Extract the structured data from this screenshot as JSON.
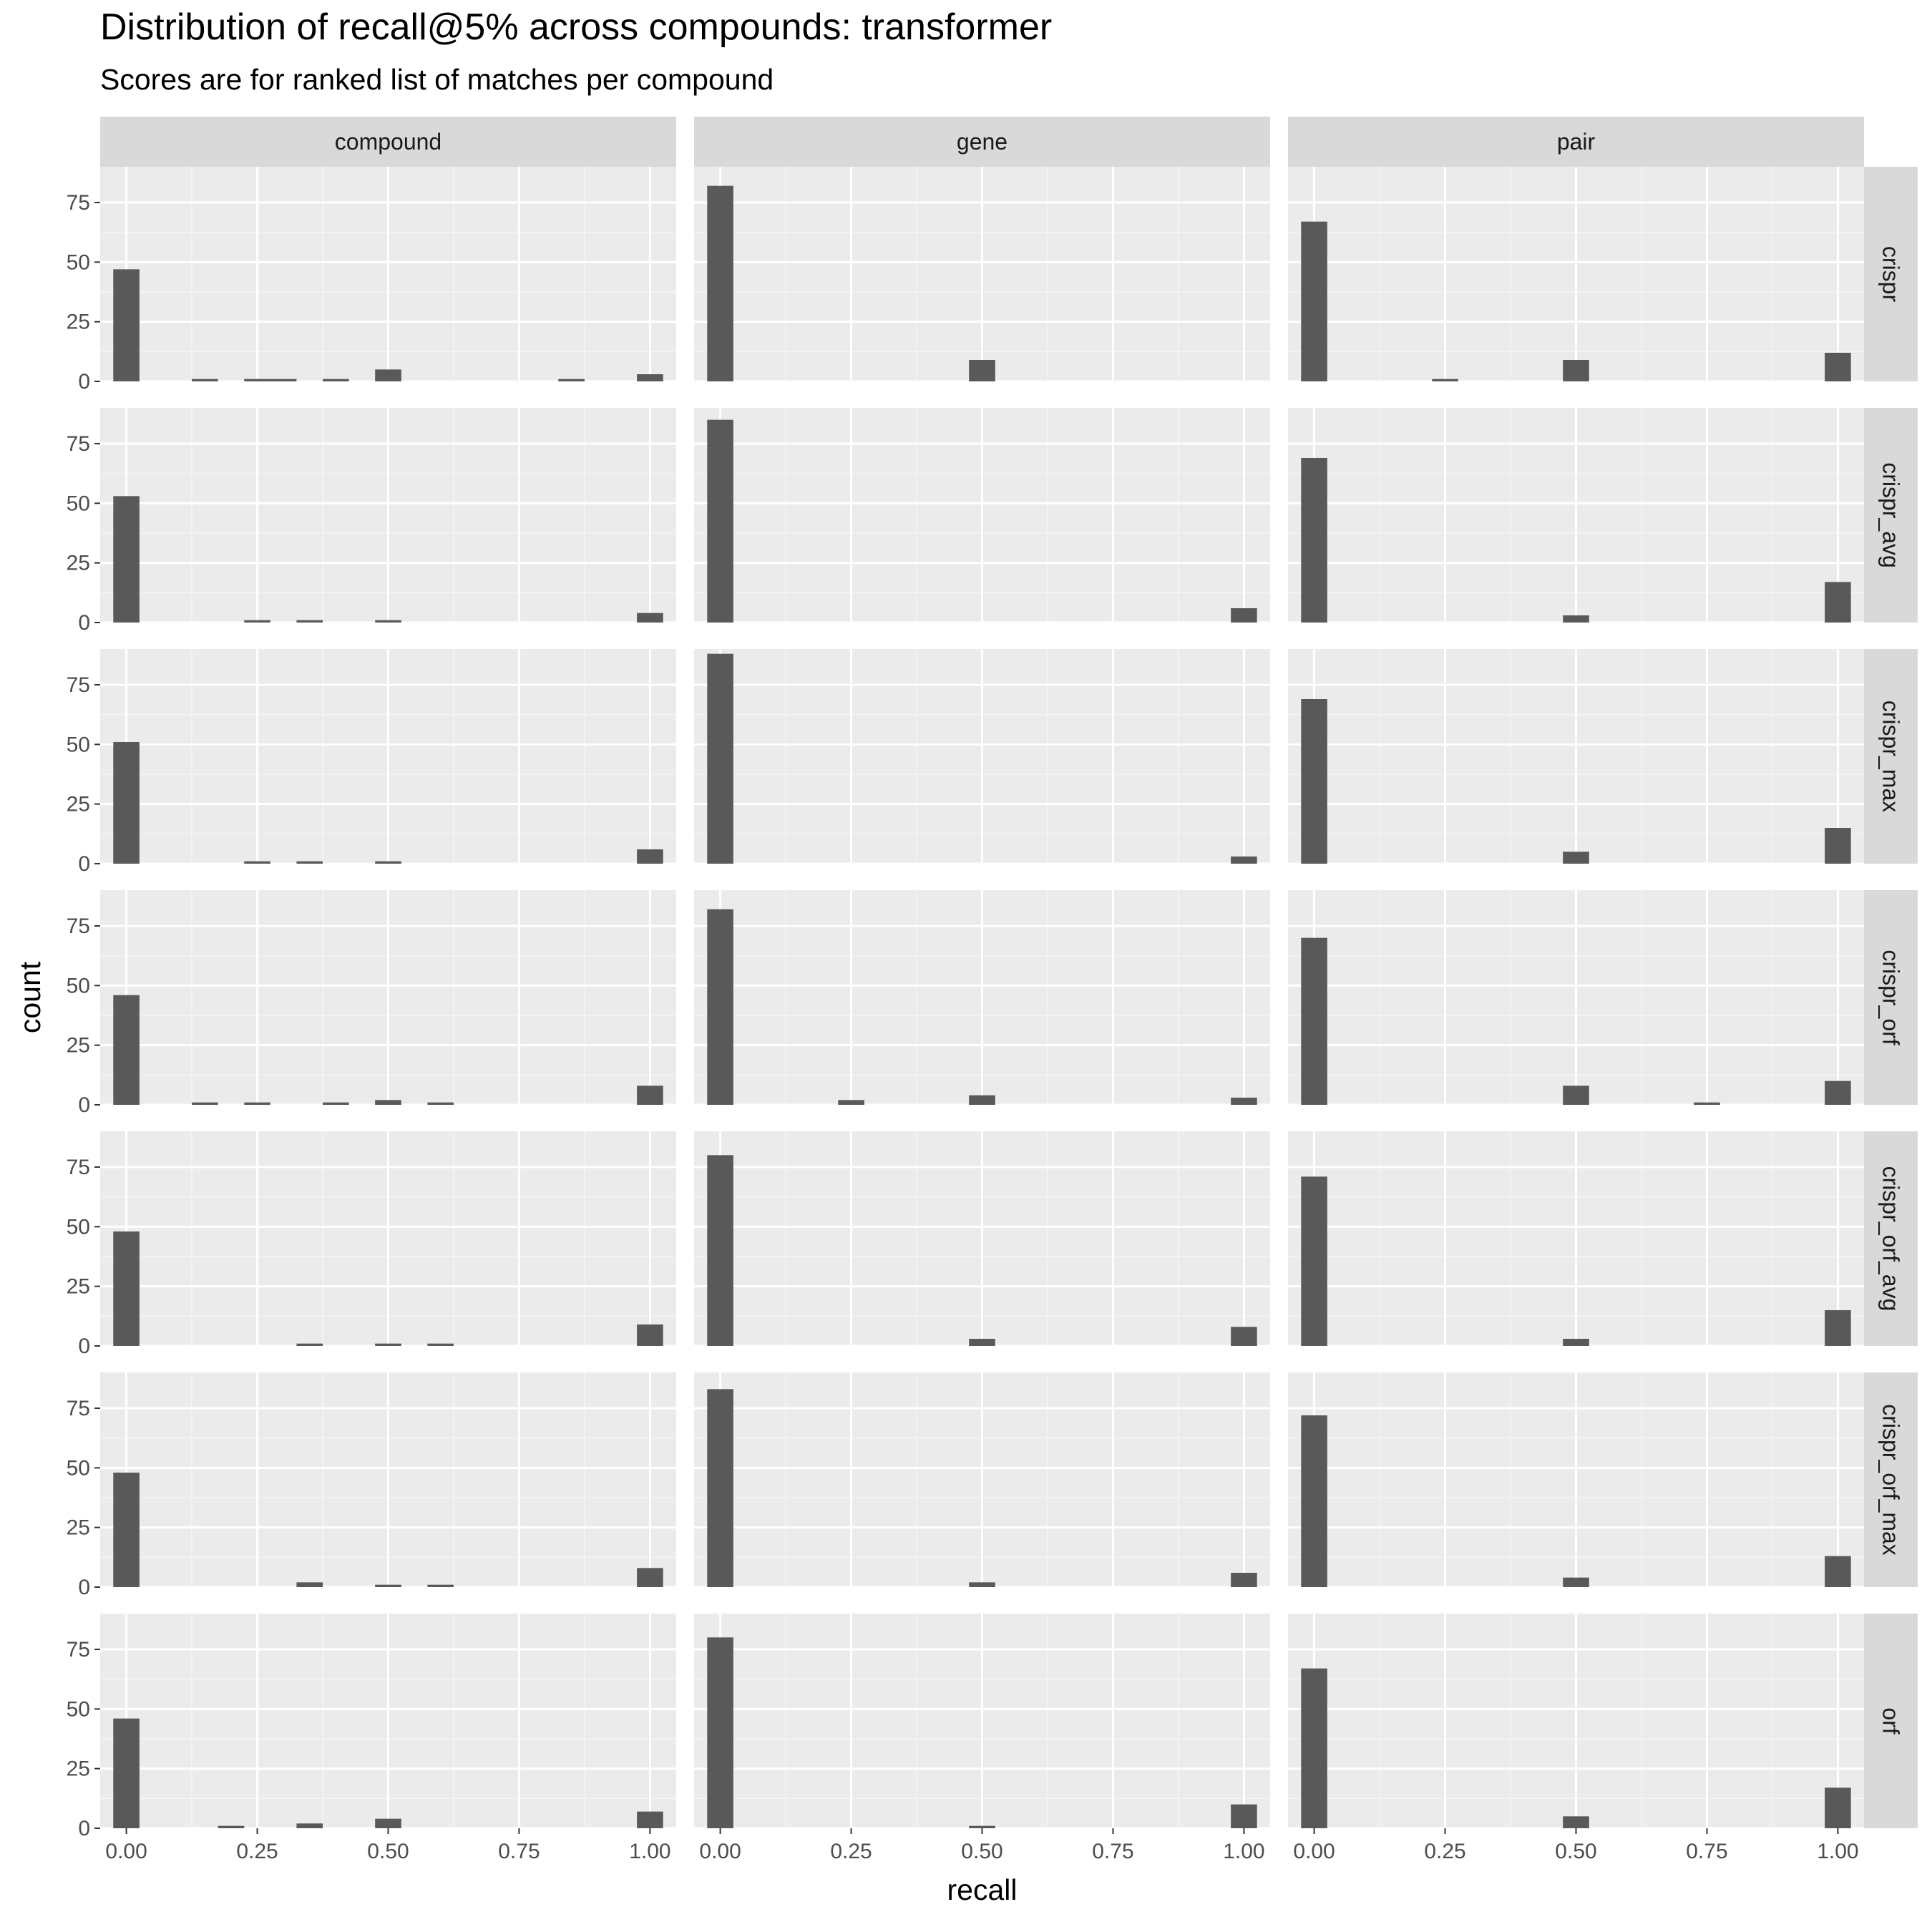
{
  "title": "Distribution of recall@5% across compounds: transformer",
  "subtitle": "Scores are for ranked list of matches per compound",
  "chart_data": {
    "type": "bar",
    "description_kind": "faceted histogram",
    "xlabel": "recall",
    "ylabel": "count",
    "xlim": [
      -0.05,
      1.05
    ],
    "ylim": [
      0,
      90
    ],
    "x_ticks": [
      0,
      0.25,
      0.5,
      0.75,
      1
    ],
    "x_tick_labels": [
      "0.00",
      "0.25",
      "0.50",
      "0.75",
      "1.00"
    ],
    "y_ticks": [
      0,
      25,
      50,
      75
    ],
    "y_tick_labels": [
      "0",
      "25",
      "50",
      "75"
    ],
    "bin_width": 0.05,
    "columns": [
      "compound",
      "gene",
      "pair"
    ],
    "rows": [
      "crispr",
      "crispr_avg",
      "crispr_max",
      "crispr_orf",
      "crispr_orf_avg",
      "crispr_orf_max",
      "orf"
    ],
    "grid": true,
    "bar_color": "#595959",
    "panel_background": "#ebebeb",
    "strip_background": "#d9d9d9",
    "panels": [
      {
        "row": "crispr",
        "column": "compound",
        "bins": [
          {
            "x": 0.0,
            "count": 47
          },
          {
            "x": 0.15,
            "count": 1
          },
          {
            "x": 0.25,
            "count": 1
          },
          {
            "x": 0.3,
            "count": 1
          },
          {
            "x": 0.4,
            "count": 1
          },
          {
            "x": 0.5,
            "count": 5
          },
          {
            "x": 0.85,
            "count": 1
          },
          {
            "x": 1.0,
            "count": 3
          }
        ]
      },
      {
        "row": "crispr",
        "column": "gene",
        "bins": [
          {
            "x": 0.0,
            "count": 82
          },
          {
            "x": 0.5,
            "count": 9
          }
        ]
      },
      {
        "row": "crispr",
        "column": "pair",
        "bins": [
          {
            "x": 0.0,
            "count": 67
          },
          {
            "x": 0.25,
            "count": 1
          },
          {
            "x": 0.5,
            "count": 9
          },
          {
            "x": 1.0,
            "count": 12
          }
        ]
      },
      {
        "row": "crispr_avg",
        "column": "compound",
        "bins": [
          {
            "x": 0.0,
            "count": 53
          },
          {
            "x": 0.25,
            "count": 1
          },
          {
            "x": 0.35,
            "count": 1
          },
          {
            "x": 0.5,
            "count": 1
          },
          {
            "x": 1.0,
            "count": 4
          }
        ]
      },
      {
        "row": "crispr_avg",
        "column": "gene",
        "bins": [
          {
            "x": 0.0,
            "count": 85
          },
          {
            "x": 1.0,
            "count": 6
          }
        ]
      },
      {
        "row": "crispr_avg",
        "column": "pair",
        "bins": [
          {
            "x": 0.0,
            "count": 69
          },
          {
            "x": 0.5,
            "count": 3
          },
          {
            "x": 1.0,
            "count": 17
          }
        ]
      },
      {
        "row": "crispr_max",
        "column": "compound",
        "bins": [
          {
            "x": 0.0,
            "count": 51
          },
          {
            "x": 0.25,
            "count": 1
          },
          {
            "x": 0.35,
            "count": 1
          },
          {
            "x": 0.5,
            "count": 1
          },
          {
            "x": 1.0,
            "count": 6
          }
        ]
      },
      {
        "row": "crispr_max",
        "column": "gene",
        "bins": [
          {
            "x": 0.0,
            "count": 88
          },
          {
            "x": 1.0,
            "count": 3
          }
        ]
      },
      {
        "row": "crispr_max",
        "column": "pair",
        "bins": [
          {
            "x": 0.0,
            "count": 69
          },
          {
            "x": 0.5,
            "count": 5
          },
          {
            "x": 1.0,
            "count": 15
          }
        ]
      },
      {
        "row": "crispr_orf",
        "column": "compound",
        "bins": [
          {
            "x": 0.0,
            "count": 46
          },
          {
            "x": 0.15,
            "count": 1
          },
          {
            "x": 0.25,
            "count": 1
          },
          {
            "x": 0.4,
            "count": 1
          },
          {
            "x": 0.5,
            "count": 2
          },
          {
            "x": 0.6,
            "count": 1
          },
          {
            "x": 1.0,
            "count": 8
          }
        ]
      },
      {
        "row": "crispr_orf",
        "column": "gene",
        "bins": [
          {
            "x": 0.0,
            "count": 82
          },
          {
            "x": 0.25,
            "count": 2
          },
          {
            "x": 0.5,
            "count": 4
          },
          {
            "x": 1.0,
            "count": 3
          }
        ]
      },
      {
        "row": "crispr_orf",
        "column": "pair",
        "bins": [
          {
            "x": 0.0,
            "count": 70
          },
          {
            "x": 0.5,
            "count": 8
          },
          {
            "x": 0.75,
            "count": 1
          },
          {
            "x": 1.0,
            "count": 10
          }
        ]
      },
      {
        "row": "crispr_orf_avg",
        "column": "compound",
        "bins": [
          {
            "x": 0.0,
            "count": 48
          },
          {
            "x": 0.35,
            "count": 1
          },
          {
            "x": 0.5,
            "count": 1
          },
          {
            "x": 0.6,
            "count": 1
          },
          {
            "x": 1.0,
            "count": 9
          }
        ]
      },
      {
        "row": "crispr_orf_avg",
        "column": "gene",
        "bins": [
          {
            "x": 0.0,
            "count": 80
          },
          {
            "x": 0.5,
            "count": 3
          },
          {
            "x": 1.0,
            "count": 8
          }
        ]
      },
      {
        "row": "crispr_orf_avg",
        "column": "pair",
        "bins": [
          {
            "x": 0.0,
            "count": 71
          },
          {
            "x": 0.5,
            "count": 3
          },
          {
            "x": 1.0,
            "count": 15
          }
        ]
      },
      {
        "row": "crispr_orf_max",
        "column": "compound",
        "bins": [
          {
            "x": 0.0,
            "count": 48
          },
          {
            "x": 0.35,
            "count": 2
          },
          {
            "x": 0.5,
            "count": 1
          },
          {
            "x": 0.6,
            "count": 1
          },
          {
            "x": 1.0,
            "count": 8
          }
        ]
      },
      {
        "row": "crispr_orf_max",
        "column": "gene",
        "bins": [
          {
            "x": 0.0,
            "count": 83
          },
          {
            "x": 0.5,
            "count": 2
          },
          {
            "x": 1.0,
            "count": 6
          }
        ]
      },
      {
        "row": "crispr_orf_max",
        "column": "pair",
        "bins": [
          {
            "x": 0.0,
            "count": 72
          },
          {
            "x": 0.5,
            "count": 4
          },
          {
            "x": 1.0,
            "count": 13
          }
        ]
      },
      {
        "row": "orf",
        "column": "compound",
        "bins": [
          {
            "x": 0.0,
            "count": 46
          },
          {
            "x": 0.2,
            "count": 1
          },
          {
            "x": 0.35,
            "count": 2
          },
          {
            "x": 0.5,
            "count": 4
          },
          {
            "x": 1.0,
            "count": 7
          }
        ]
      },
      {
        "row": "orf",
        "column": "gene",
        "bins": [
          {
            "x": 0.0,
            "count": 80
          },
          {
            "x": 0.5,
            "count": 1
          },
          {
            "x": 1.0,
            "count": 10
          }
        ]
      },
      {
        "row": "orf",
        "column": "pair",
        "bins": [
          {
            "x": 0.0,
            "count": 67
          },
          {
            "x": 0.5,
            "count": 5
          },
          {
            "x": 1.0,
            "count": 17
          }
        ]
      }
    ]
  }
}
